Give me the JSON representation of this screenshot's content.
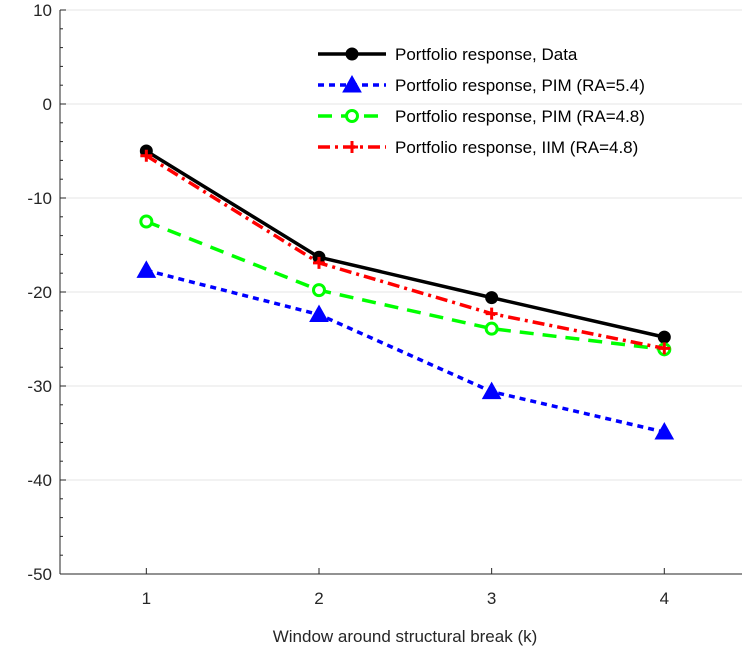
{
  "chart_data": {
    "type": "line",
    "title": "",
    "xlabel": "Window around structural break (k)",
    "ylabel": "",
    "x": [
      1,
      2,
      3,
      4
    ],
    "xticks": [
      1,
      2,
      3,
      4
    ],
    "xlim": [
      0.5,
      4.45
    ],
    "ylim": [
      -50,
      10
    ],
    "yticks": [
      -50,
      -40,
      -30,
      -20,
      -10,
      0,
      10
    ],
    "grid": "horizontal",
    "legend_position": "top-right",
    "series": [
      {
        "name": "Portfolio response, Data",
        "values": [
          -5.0,
          -16.3,
          -20.6,
          -24.8
        ],
        "color": "#000000",
        "line": "solid",
        "marker": "filled-circle"
      },
      {
        "name": "Portfolio response, PIM (RA=5.4)",
        "values": [
          -17.7,
          -22.4,
          -30.6,
          -34.9
        ],
        "color": "#0000ff",
        "line": "dashed",
        "marker": "filled-triangle"
      },
      {
        "name": "Portfolio response, PIM (RA=4.8)",
        "values": [
          -12.5,
          -19.8,
          -23.9,
          -26.1
        ],
        "color": "#00ff00",
        "line": "long-dashed",
        "marker": "open-circle"
      },
      {
        "name": "Portfolio response, IIM (RA=4.8)",
        "values": [
          -5.5,
          -16.9,
          -22.3,
          -26.0
        ],
        "color": "#ff0000",
        "line": "dash-dot",
        "marker": "plus"
      }
    ]
  }
}
